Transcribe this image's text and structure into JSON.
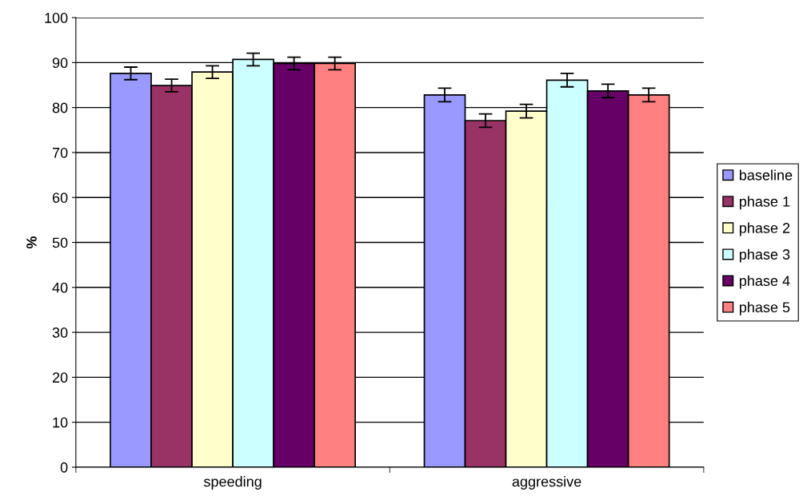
{
  "chart_data": {
    "type": "bar",
    "ylabel": "%",
    "categories": [
      "speeding",
      "aggressive"
    ],
    "series": [
      {
        "name": "baseline",
        "color": "#9999ff",
        "values": [
          87.6,
          82.8
        ],
        "errors": [
          1.4,
          1.5
        ]
      },
      {
        "name": "phase 1",
        "color": "#993366",
        "values": [
          84.9,
          77.1
        ],
        "errors": [
          1.4,
          1.5
        ]
      },
      {
        "name": "phase 2",
        "color": "#ffffcc",
        "values": [
          87.9,
          79.2
        ],
        "errors": [
          1.4,
          1.5
        ]
      },
      {
        "name": "phase 3",
        "color": "#ccffff",
        "values": [
          90.7,
          86.1
        ],
        "errors": [
          1.4,
          1.5
        ]
      },
      {
        "name": "phase 4",
        "color": "#660066",
        "values": [
          89.8,
          83.7
        ],
        "errors": [
          1.4,
          1.5
        ]
      },
      {
        "name": "phase 5",
        "color": "#ff8080",
        "values": [
          89.8,
          82.8
        ],
        "errors": [
          1.4,
          1.5
        ]
      }
    ],
    "ylim": [
      0,
      100
    ],
    "yticks": [
      0,
      10,
      20,
      30,
      40,
      50,
      60,
      70,
      80,
      90,
      100
    ],
    "grid": "y",
    "legend": "right"
  }
}
